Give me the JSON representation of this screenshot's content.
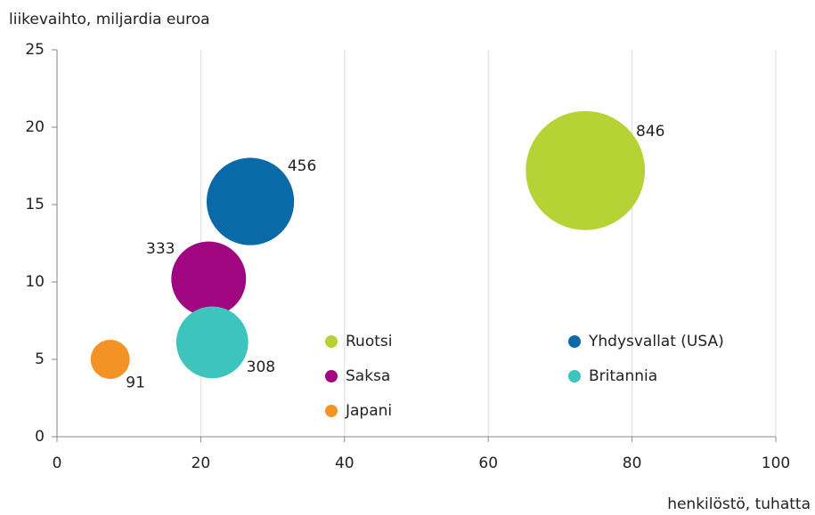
{
  "chart_data": {
    "type": "bubble",
    "y_label": "liikevaihto, miljardia euroa",
    "x_label": "henkilöstö, tuhatta",
    "xlim": [
      0,
      100
    ],
    "xticks": [
      0,
      20,
      40,
      60,
      80,
      100
    ],
    "ylim": [
      0,
      25
    ],
    "yticks": [
      0,
      5,
      10,
      15,
      20,
      25
    ],
    "grid": "x",
    "series": [
      {
        "name": "Ruotsi",
        "color": "#b5d334",
        "x": [
          73.5
        ],
        "values": [
          17.2
        ],
        "sizes": [
          846
        ]
      },
      {
        "name": "Yhdysvallat (USA)",
        "color": "#0a6aa8",
        "x": [
          26.9
        ],
        "values": [
          15.2
        ],
        "sizes": [
          456
        ]
      },
      {
        "name": "Saksa",
        "color": "#a0067f",
        "x": [
          21.1
        ],
        "values": [
          10.2
        ],
        "sizes": [
          333
        ]
      },
      {
        "name": "Britannia",
        "color": "#3cc4bd",
        "x": [
          21.6
        ],
        "values": [
          6.1
        ],
        "sizes": [
          308
        ]
      },
      {
        "name": "Japani",
        "color": "#f39325",
        "x": [
          7.4
        ],
        "values": [
          5.0
        ],
        "sizes": [
          91
        ]
      }
    ]
  }
}
